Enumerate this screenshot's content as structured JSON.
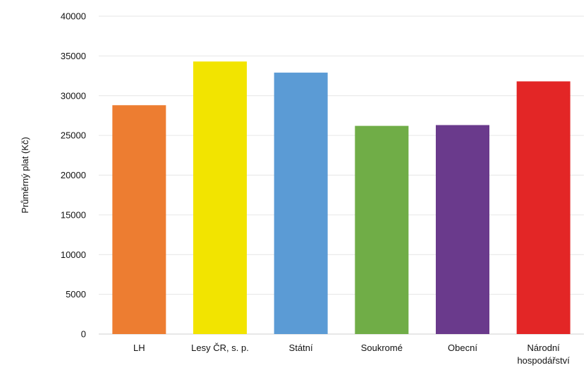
{
  "chart_data": {
    "type": "bar",
    "title": "",
    "xlabel": "",
    "ylabel": "Průměrný plat (Kč)",
    "ylim": [
      0,
      40000
    ],
    "yticks": [
      0,
      5000,
      10000,
      15000,
      20000,
      25000,
      30000,
      35000,
      40000
    ],
    "grid": true,
    "legend": "none",
    "categories": [
      [
        "LH"
      ],
      [
        "Lesy ČR, s. p."
      ],
      [
        "Státní"
      ],
      [
        "Soukromé"
      ],
      [
        "Obecní"
      ],
      [
        "Národní",
        "hospodářství"
      ]
    ],
    "values": [
      28800,
      34300,
      32900,
      26200,
      26300,
      31800
    ],
    "colors": [
      "#ed7d31",
      "#f2e400",
      "#5b9bd5",
      "#70ad47",
      "#6a3a8c",
      "#e32626"
    ]
  }
}
